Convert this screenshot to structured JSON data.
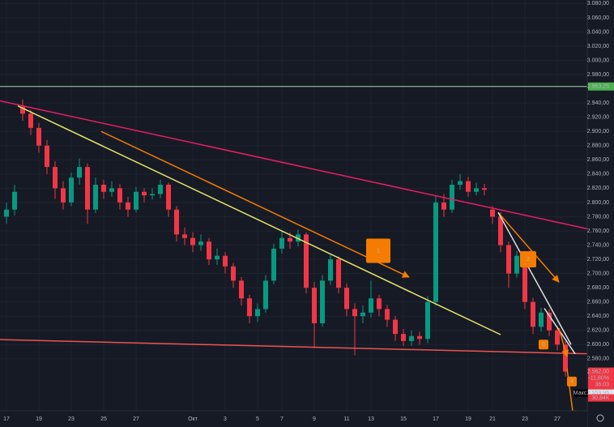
{
  "chart_data": {
    "type": "candlestick",
    "categories": [
      "17",
      null,
      null,
      null,
      "19",
      null,
      null,
      null,
      "23",
      null,
      null,
      null,
      "25",
      null,
      null,
      null,
      "27",
      null,
      null,
      null,
      null,
      null,
      null,
      "Окт",
      null,
      null,
      null,
      "3",
      null,
      null,
      null,
      "5",
      null,
      null,
      "7",
      null,
      null,
      null,
      "9",
      null,
      null,
      null,
      "11",
      null,
      null,
      "13",
      null,
      null,
      null,
      "15",
      null,
      null,
      null,
      "17",
      null,
      null,
      null,
      "19",
      null,
      null,
      "21",
      null,
      null,
      null,
      "23",
      null,
      null,
      null,
      "27",
      null
    ],
    "open": [
      2780,
      2790,
      2935,
      2925,
      2905,
      2880,
      2850,
      2820,
      2800,
      2835,
      2850,
      2790,
      2825,
      2815,
      2820,
      2800,
      2790,
      2815,
      2810,
      2812,
      2825,
      2790,
      2755,
      2750,
      2740,
      2745,
      2720,
      2725,
      2710,
      2690,
      2665,
      2640,
      2650,
      2690,
      2735,
      2750,
      2745,
      2755,
      2680,
      2630,
      2690,
      2720,
      2680,
      2650,
      2640,
      2645,
      2665,
      2650,
      2635,
      2615,
      2605,
      2612,
      2608,
      2660,
      2800,
      2790,
      2825,
      2830,
      2815,
      2820,
      2790,
      2780,
      2740,
      2700,
      2725,
      2660,
      2625,
      2645,
      2620,
      2600
    ],
    "high": [
      2800,
      2825,
      2945,
      2930,
      2912,
      2888,
      2858,
      2830,
      2842,
      2862,
      2855,
      2835,
      2832,
      2830,
      2826,
      2808,
      2822,
      2820,
      2820,
      2832,
      2828,
      2795,
      2765,
      2758,
      2755,
      2750,
      2735,
      2730,
      2715,
      2695,
      2670,
      2658,
      2698,
      2742,
      2760,
      2758,
      2762,
      2758,
      2688,
      2698,
      2728,
      2724,
      2686,
      2658,
      2655,
      2690,
      2670,
      2656,
      2640,
      2622,
      2620,
      2618,
      2668,
      2810,
      2812,
      2832,
      2840,
      2836,
      2828,
      2826,
      2795,
      2786,
      2745,
      2732,
      2730,
      2666,
      2652,
      2650,
      2626,
      2605
    ],
    "low": [
      2770,
      2782,
      2915,
      2895,
      2870,
      2840,
      2805,
      2790,
      2795,
      2825,
      2770,
      2785,
      2805,
      2808,
      2790,
      2780,
      2786,
      2800,
      2804,
      2806,
      2780,
      2745,
      2740,
      2730,
      2732,
      2712,
      2712,
      2700,
      2680,
      2655,
      2630,
      2632,
      2645,
      2685,
      2728,
      2735,
      2738,
      2672,
      2595,
      2625,
      2684,
      2672,
      2640,
      2585,
      2630,
      2638,
      2640,
      2625,
      2605,
      2598,
      2598,
      2600,
      2602,
      2655,
      2780,
      2785,
      2818,
      2808,
      2810,
      2810,
      2770,
      2730,
      2680,
      2694,
      2650,
      2615,
      2618,
      2612,
      2592,
      2555
    ],
    "close": [
      2790,
      2815,
      2925,
      2905,
      2880,
      2850,
      2820,
      2800,
      2835,
      2850,
      2790,
      2825,
      2815,
      2820,
      2800,
      2790,
      2815,
      2810,
      2812,
      2825,
      2790,
      2755,
      2750,
      2740,
      2745,
      2720,
      2725,
      2710,
      2690,
      2665,
      2640,
      2650,
      2690,
      2735,
      2750,
      2745,
      2755,
      2680,
      2630,
      2690,
      2720,
      2680,
      2650,
      2640,
      2645,
      2665,
      2650,
      2635,
      2615,
      2605,
      2612,
      2608,
      2660,
      2800,
      2790,
      2825,
      2830,
      2815,
      2820,
      2818,
      2780,
      2740,
      2700,
      2725,
      2660,
      2625,
      2645,
      2620,
      2600,
      2562
    ],
    "up_color": "#089981",
    "down_color": "#f23645",
    "ylim": [
      2484,
      3085
    ],
    "yticks": [
      {
        "value": 3080,
        "label": "3.080,00"
      },
      {
        "value": 3060,
        "label": "3.060,00"
      },
      {
        "value": 3040,
        "label": "3.040,00"
      },
      {
        "value": 3020,
        "label": "3.020,00"
      },
      {
        "value": 3000,
        "label": "3.000,00"
      },
      {
        "value": 2980,
        "label": "2.980,00"
      },
      {
        "value": 2940,
        "label": "2.940,00"
      },
      {
        "value": 2920,
        "label": "2.920,00"
      },
      {
        "value": 2900,
        "label": "2.900,00"
      },
      {
        "value": 2880,
        "label": "2.880,00"
      },
      {
        "value": 2860,
        "label": "2.860,00"
      },
      {
        "value": 2840,
        "label": "2.840,00"
      },
      {
        "value": 2820,
        "label": "2.820,00"
      },
      {
        "value": 2800,
        "label": "2.800,00"
      },
      {
        "value": 2780,
        "label": "2.780,00"
      },
      {
        "value": 2760,
        "label": "2.760,00"
      },
      {
        "value": 2740,
        "label": "2.740,00"
      },
      {
        "value": 2720,
        "label": "2.720,00"
      },
      {
        "value": 2700,
        "label": "2.700,00"
      },
      {
        "value": 2680,
        "label": "2.680,00"
      },
      {
        "value": 2660,
        "label": "2.660,00"
      },
      {
        "value": 2640,
        "label": "2.640,00"
      },
      {
        "value": 2620,
        "label": "2.620,00"
      },
      {
        "value": 2600,
        "label": "2.600,00"
      },
      {
        "value": 2580,
        "label": "2.580,00"
      }
    ],
    "grid": true,
    "horizontal_line": {
      "value": 2963.25,
      "label": "2.963,25",
      "color": "#a5d6a7"
    },
    "trendlines": [
      {
        "from": [
          -0.8,
          2943
        ],
        "to": [
          71.7,
          2763
        ],
        "color": "#e91e63",
        "arrow": false
      },
      {
        "from": [
          1.4,
          2936
        ],
        "to": [
          61,
          2614
        ],
        "color": "#e8e36a",
        "arrow": false
      },
      {
        "from": [
          11.7,
          2900
        ],
        "to": [
          49.7,
          2695
        ],
        "color": "#f57c00",
        "arrow": true
      },
      {
        "from": [
          -0.8,
          2607
        ],
        "to": [
          71.7,
          2587
        ],
        "color": "#ef5350",
        "arrow": false
      },
      {
        "from": [
          60.7,
          2786
        ],
        "to": [
          68.2,
          2688
        ],
        "color": "#f57c00",
        "arrow": true
      },
      {
        "from": [
          60.7,
          2786
        ],
        "to": [
          69.7,
          2600
        ],
        "color": "#e0e0e0",
        "arrow": false
      },
      {
        "from": [
          66.4,
          2651
        ],
        "to": [
          70.2,
          2587
        ],
        "color": "#e0e0e0",
        "arrow": false
      },
      {
        "from": [
          68.2,
          2623
        ],
        "to": [
          69.2,
          2583
        ],
        "color": "#f57c00",
        "arrow": true
      },
      {
        "from": [
          69.2,
          2566
        ],
        "to": [
          70,
          2498
        ],
        "color": "#f57c00",
        "arrow": true
      }
    ],
    "markers": [
      {
        "label": "1",
        "x": 45.9,
        "y": 2732
      },
      {
        "label": "2",
        "x": 64.4,
        "y": 2720
      },
      {
        "label": "3",
        "x": 66.3,
        "y": 2600
      },
      {
        "label": "4",
        "x": 69.8,
        "y": 2548
      }
    ],
    "last_price": {
      "label": "2.562,00",
      "change": "-11,80%",
      "countdown": "36:03"
    },
    "low_label": {
      "name": "Макс.",
      "label": "2.559,95"
    },
    "volume_label": "30,84К"
  }
}
